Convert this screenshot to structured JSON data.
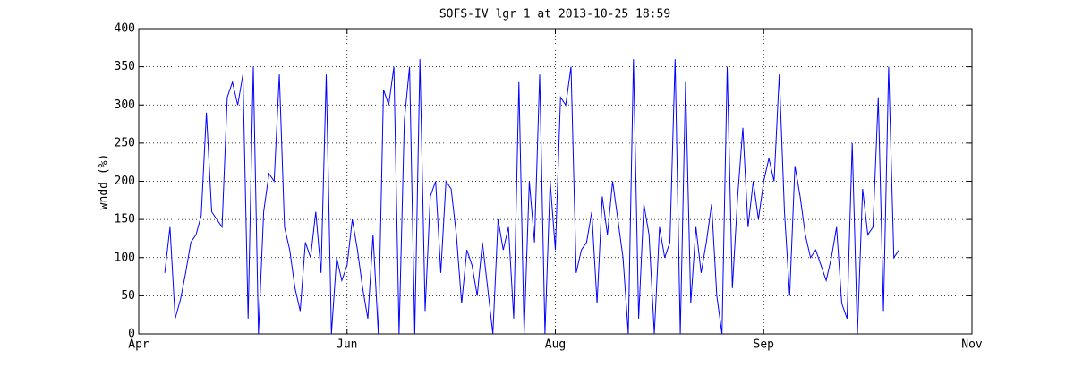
{
  "chart_data": {
    "type": "line",
    "title": "SOFS-IV lgr 1 at 2013-10-25 18:59",
    "y_label": "wndd (%)",
    "xlim": [
      0,
      4
    ],
    "xticks": [
      {
        "value": 0,
        "label": "Apr"
      },
      {
        "value": 1,
        "label": "Jun"
      },
      {
        "value": 2,
        "label": "Aug"
      },
      {
        "value": 3,
        "label": "Sep"
      },
      {
        "value": 4,
        "label": "Nov"
      }
    ],
    "ylim": [
      0,
      400
    ],
    "yticks": [
      0,
      50,
      100,
      150,
      200,
      250,
      300,
      350,
      400
    ],
    "grid": true,
    "x": [
      0.125,
      0.15,
      0.175,
      0.2,
      0.225,
      0.25,
      0.275,
      0.3,
      0.325,
      0.35,
      0.375,
      0.4,
      0.425,
      0.45,
      0.475,
      0.5,
      0.525,
      0.55,
      0.575,
      0.6,
      0.625,
      0.65,
      0.675,
      0.7,
      0.725,
      0.75,
      0.775,
      0.8,
      0.825,
      0.85,
      0.875,
      0.9,
      0.925,
      0.95,
      0.975,
      1.0,
      1.025,
      1.05,
      1.075,
      1.1,
      1.125,
      1.15,
      1.175,
      1.2,
      1.225,
      1.25,
      1.275,
      1.3,
      1.325,
      1.35,
      1.375,
      1.4,
      1.425,
      1.45,
      1.475,
      1.5,
      1.525,
      1.55,
      1.575,
      1.6,
      1.625,
      1.65,
      1.675,
      1.7,
      1.725,
      1.75,
      1.775,
      1.8,
      1.825,
      1.85,
      1.875,
      1.9,
      1.925,
      1.95,
      1.975,
      2.0,
      2.025,
      2.05,
      2.075,
      2.1,
      2.125,
      2.15,
      2.175,
      2.2,
      2.225,
      2.25,
      2.275,
      2.3,
      2.325,
      2.35,
      2.375,
      2.4,
      2.425,
      2.45,
      2.475,
      2.5,
      2.525,
      2.55,
      2.575,
      2.6,
      2.625,
      2.65,
      2.675,
      2.7,
      2.725,
      2.75,
      2.775,
      2.8,
      2.825,
      2.85,
      2.875,
      2.9,
      2.925,
      2.95,
      2.975,
      3.0,
      3.025,
      3.05,
      3.075,
      3.1,
      3.125,
      3.15,
      3.175,
      3.2,
      3.225,
      3.25,
      3.275,
      3.3,
      3.325,
      3.35,
      3.375,
      3.4,
      3.425,
      3.45,
      3.475,
      3.5,
      3.525,
      3.55,
      3.575,
      3.6,
      3.625,
      3.65
    ],
    "series": [
      {
        "name": "wndd",
        "color": "#0000ff",
        "values": [
          80,
          140,
          20,
          45,
          80,
          120,
          130,
          155,
          290,
          160,
          150,
          140,
          310,
          330,
          300,
          340,
          20,
          350,
          0,
          160,
          210,
          200,
          340,
          140,
          110,
          60,
          30,
          120,
          100,
          160,
          80,
          340,
          0,
          100,
          70,
          90,
          150,
          110,
          60,
          20,
          130,
          0,
          320,
          300,
          350,
          0,
          280,
          350,
          0,
          360,
          30,
          180,
          200,
          80,
          200,
          190,
          130,
          40,
          110,
          90,
          50,
          120,
          60,
          0,
          150,
          110,
          140,
          20,
          330,
          0,
          200,
          120,
          340,
          0,
          200,
          110,
          310,
          300,
          350,
          80,
          110,
          120,
          160,
          40,
          180,
          130,
          200,
          150,
          100,
          0,
          360,
          20,
          170,
          130,
          0,
          140,
          100,
          120,
          360,
          0,
          330,
          40,
          140,
          80,
          120,
          170,
          50,
          0,
          350,
          60,
          180,
          270,
          140,
          200,
          150,
          200,
          230,
          200,
          340,
          160,
          50,
          220,
          180,
          130,
          100,
          110,
          90,
          70,
          100,
          140,
          40,
          20,
          250,
          0,
          190,
          130,
          140,
          310,
          30,
          350,
          100,
          110
        ]
      }
    ]
  }
}
